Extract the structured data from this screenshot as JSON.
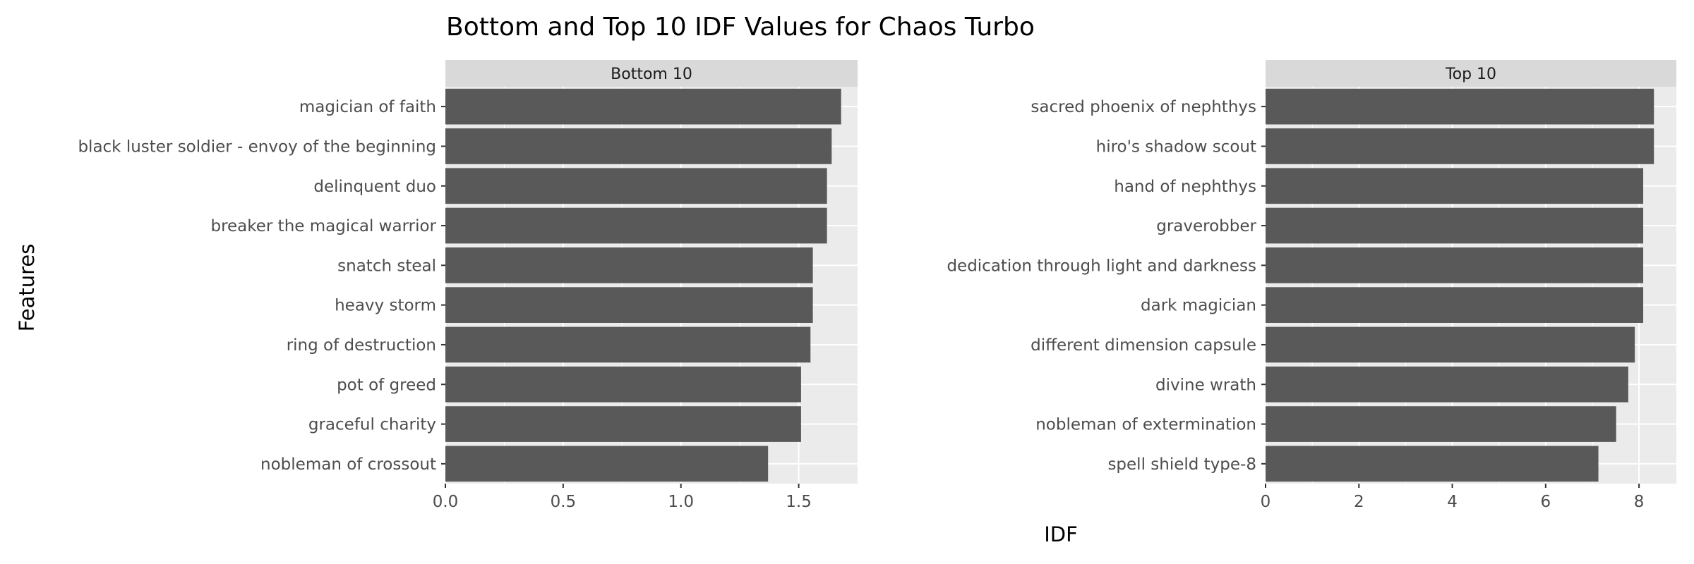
{
  "chart_data": {
    "type": "bar",
    "orientation": "horizontal",
    "title": "Bottom and Top 10 IDF Values for Chaos Turbo",
    "xlabel": "IDF",
    "ylabel": "Features",
    "grid": true,
    "colors": {
      "bar": "#595959",
      "panel": "#ebebeb",
      "strip": "#d9d9d9",
      "grid": "#ffffff"
    },
    "panels": [
      {
        "strip": "Bottom 10",
        "xlim": [
          0,
          1.75
        ],
        "xticks": [
          0,
          0.5,
          1,
          1.5
        ],
        "xtick_labels": [
          "0.0",
          "0.5",
          "1.0",
          "1.5"
        ],
        "categories": [
          "magician of faith",
          "black luster soldier - envoy of the beginning",
          "delinquent duo",
          "breaker the magical warrior",
          "snatch steal",
          "heavy storm",
          "ring of destruction",
          "pot of greed",
          "graceful charity",
          "nobleman of crossout"
        ],
        "values": [
          1.68,
          1.64,
          1.62,
          1.62,
          1.56,
          1.56,
          1.55,
          1.51,
          1.51,
          1.37
        ]
      },
      {
        "strip": "Top 10",
        "xlim": [
          0,
          8.8
        ],
        "xticks": [
          0,
          2,
          4,
          6,
          8
        ],
        "xtick_labels": [
          "0",
          "2",
          "4",
          "6",
          "8"
        ],
        "categories": [
          "sacred phoenix of nephthys",
          "hiro's shadow scout",
          "hand of nephthys",
          "graverobber",
          "dedication through light and darkness",
          "dark magician",
          "different dimension capsule",
          "divine wrath",
          "nobleman of extermination",
          "spell shield type-8"
        ],
        "values": [
          8.32,
          8.32,
          8.09,
          8.09,
          8.09,
          8.09,
          7.91,
          7.77,
          7.51,
          7.13
        ]
      }
    ]
  }
}
